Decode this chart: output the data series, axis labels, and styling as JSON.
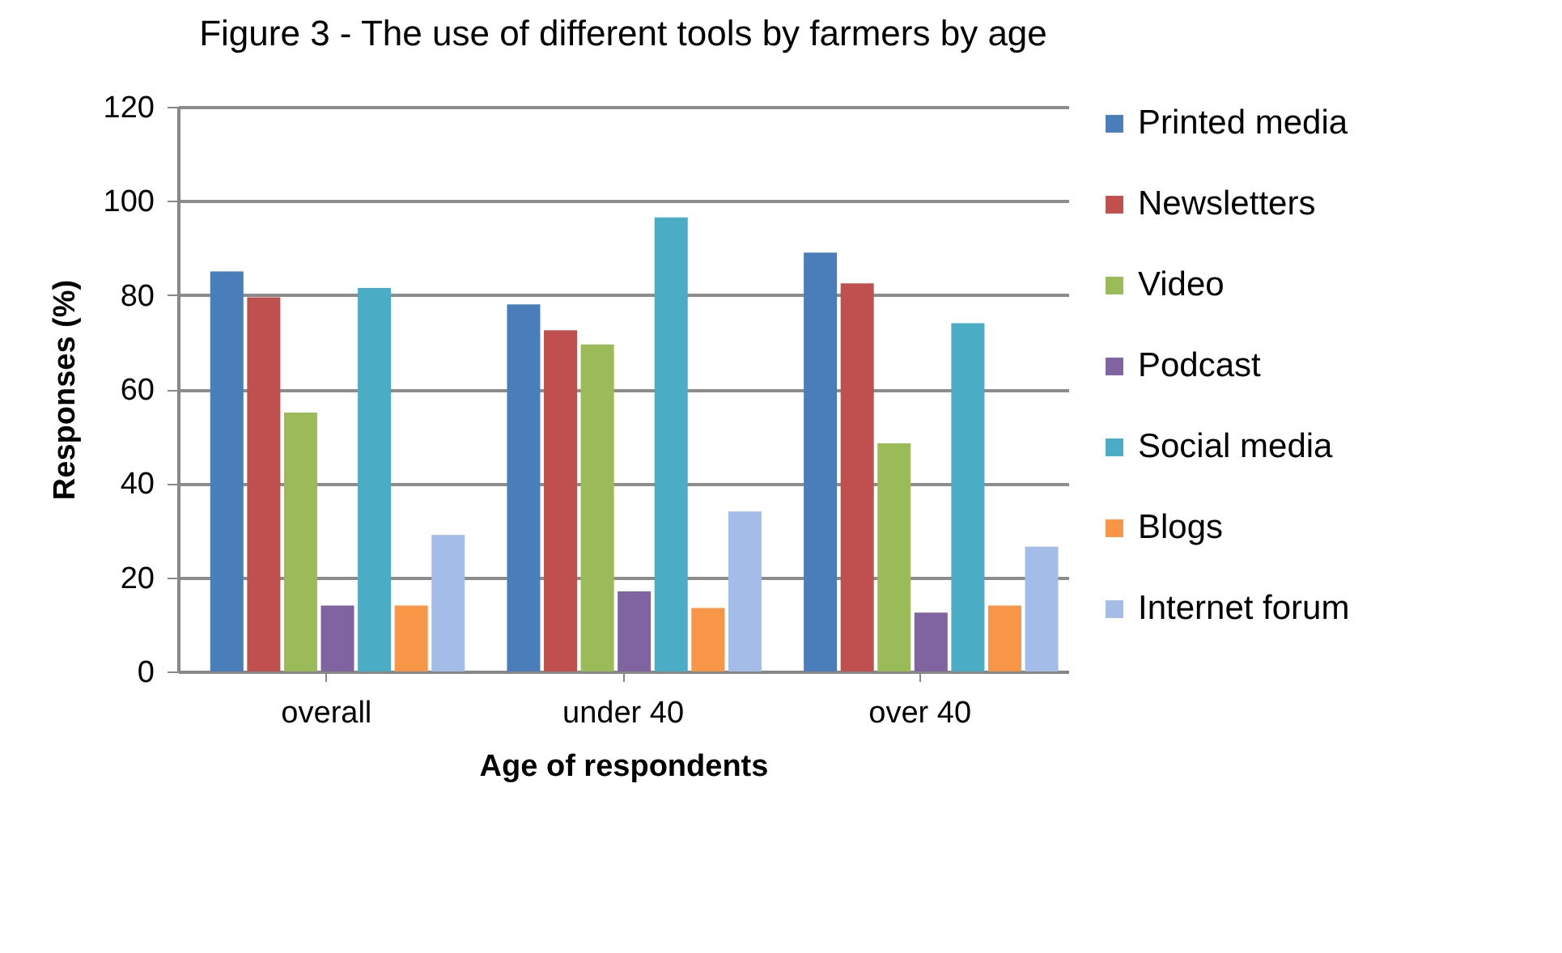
{
  "chart_data": {
    "type": "bar",
    "title": "Figure 3 - The use of different tools by farmers by age",
    "xlabel": "Age of respondents",
    "ylabel": "Responses (%)",
    "categories": [
      "overall",
      "under 40",
      "over 40"
    ],
    "series": [
      {
        "name": "Printed media",
        "color": "#4a7ebb",
        "values": [
          85,
          78,
          89
        ]
      },
      {
        "name": "Newsletters",
        "color": "#c0504d",
        "values": [
          79.5,
          72.5,
          82.5
        ]
      },
      {
        "name": "Video",
        "color": "#9bbb59",
        "values": [
          55,
          69.5,
          48.5
        ]
      },
      {
        "name": "Podcast",
        "color": "#8064a2",
        "values": [
          14,
          17,
          12.5
        ]
      },
      {
        "name": "Social media",
        "color": "#4bacc6",
        "values": [
          81.5,
          96.5,
          74
        ]
      },
      {
        "name": "Blogs",
        "color": "#f79646",
        "values": [
          14,
          13.5,
          14
        ]
      },
      {
        "name": "Internet forum",
        "color": "#a3bde8",
        "values": [
          29,
          34,
          26.5
        ]
      }
    ],
    "ylim": [
      0,
      120
    ],
    "yticks": [
      0,
      20,
      40,
      60,
      80,
      100,
      120
    ],
    "grid": "y",
    "legend": "right"
  }
}
